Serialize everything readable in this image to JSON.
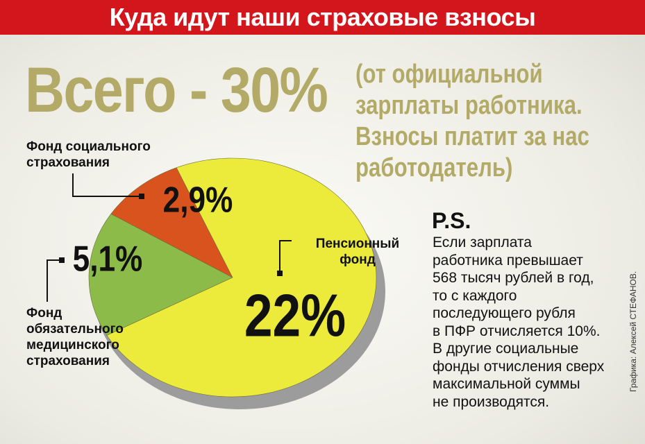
{
  "chart_data": {
    "type": "pie",
    "title": "Куда идут наши страховые взносы",
    "annotation": "Всего - 30%",
    "subtitle_lines": [
      "(от официальной",
      "зарплаты работника.",
      "Взносы платит за нас",
      "работодатель)"
    ],
    "categories": [
      "Фонд социального страхования",
      "Фонд обязательного медицинского страхования",
      "Пенсионный фонд"
    ],
    "values": [
      2.9,
      5.1,
      22
    ],
    "value_labels": [
      "2,9%",
      "5,1%",
      "22%"
    ],
    "colors": [
      "#d9531e",
      "#8dbb4a",
      "#ecea3a"
    ],
    "note": {
      "heading": "P.S.",
      "lines": [
        "Если зарплата",
        "работника превышает",
        "568 тысяч рублей в год,",
        "то с каждого",
        "последующего рубля",
        "в ПФР отчисляется 10%.",
        "В другие социальные",
        "фонды отчисления сверх",
        "максимальной суммы",
        "не производятся."
      ]
    },
    "credit": "Графика: Алексей СТЕФАНОВ."
  }
}
